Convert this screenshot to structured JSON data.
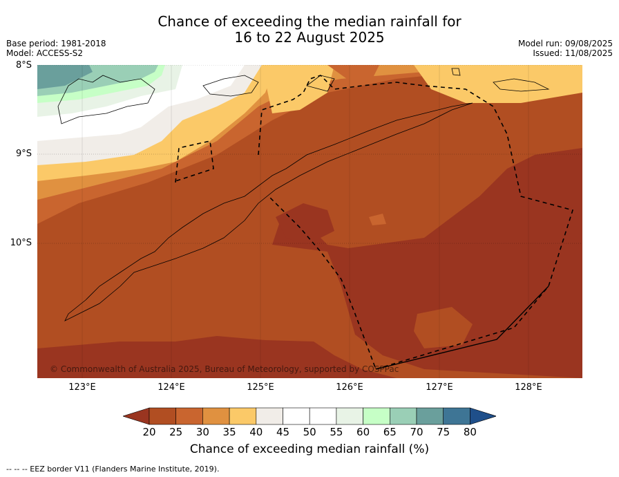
{
  "title": {
    "line1": "Chance of exceeding the median rainfall for",
    "line2": "16 to 22 August 2025"
  },
  "meta_left": {
    "base_period": "Base period: 1981-2018",
    "model": "Model: ACCESS-S2"
  },
  "meta_right": {
    "model_run": "Model run: 09/08/2025",
    "issued": "Issued: 11/08/2025"
  },
  "map": {
    "lat_labels": [
      "8°S",
      "9°S",
      "10°S"
    ],
    "lon_labels": [
      "123°E",
      "124°E",
      "125°E",
      "126°E",
      "127°E",
      "128°E"
    ],
    "copyright": "© Commonwealth of Australia 2025, Bureau of Meteorology, supported by COSPPac"
  },
  "colorbar": {
    "ticks": [
      "20",
      "25",
      "30",
      "35",
      "40",
      "45",
      "50",
      "55",
      "60",
      "65",
      "70",
      "75",
      "80"
    ],
    "label": "Chance of exceeding median rainfall (%)",
    "colors": [
      "#9a3520",
      "#b14e22",
      "#c9652f",
      "#e09140",
      "#fbc968",
      "#f1ede8",
      "#ffffff",
      "#ffffff",
      "#e8f3e6",
      "#c6ffc6",
      "#9acfb6",
      "#6a9f9c",
      "#3e7595",
      "#1f4f8a"
    ]
  },
  "footer": "--  --  -- EEZ border V11 (Flanders Marine Institute, 2019)."
}
